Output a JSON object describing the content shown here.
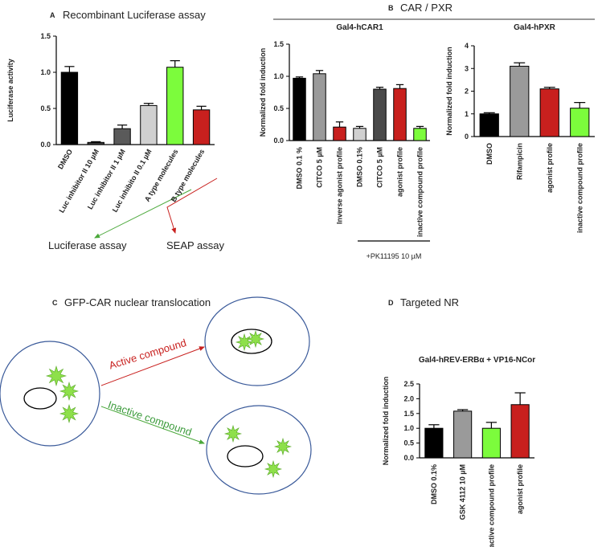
{
  "panels": [
    {
      "letter": "A",
      "title": "Recombinant Luciferase assay"
    },
    {
      "letter": "B",
      "title": "CAR / PXR"
    },
    {
      "letter": "C",
      "title": "GFP-CAR nuclear translocation"
    },
    {
      "letter": "D",
      "title": "Targeted NR"
    }
  ],
  "annotations": {
    "luciferase": "Luciferase assay",
    "seap": "SEAP assay",
    "pk": "+PK11195 10 µM",
    "active": "Active compound",
    "inactive": "Inactive compound"
  },
  "chart_data": [
    {
      "type": "bar",
      "ylabel": "Luciferase activity",
      "categories": [
        "DMSO",
        "Luc inhibitor II 10 µM",
        "Luc inhibitor II 1 µM",
        "Luc inhibito II 0.1 µM",
        "A type molecules",
        "B type molecules"
      ],
      "values": [
        1.0,
        0.03,
        0.22,
        0.54,
        1.07,
        0.48
      ],
      "errors": [
        0.08,
        0.01,
        0.05,
        0.03,
        0.09,
        0.05
      ],
      "colors": [
        "#000000",
        "#3a3a3a",
        "#5a5a5a",
        "#d0d0d0",
        "#7cfc3c",
        "#c8201e"
      ],
      "ylim": [
        0,
        1.5
      ],
      "yticks": [
        {
          "value": 0,
          "label": "0.0"
        },
        {
          "value": 0.5,
          "label": "0.5"
        },
        {
          "value": 1,
          "label": "1.0"
        },
        {
          "value": 1.5,
          "label": "1.5"
        }
      ]
    },
    {
      "type": "bar",
      "title": "Gal4-hCAR1",
      "ylabel": "Normalized fold induction",
      "categories": [
        "DMSO 0.1 %",
        "CITCO 5 µM",
        "Inverse agonist profile",
        "DMSO 0.1%",
        "CITCO 5 µM",
        "agonist profile",
        "inactive compound profile"
      ],
      "values": [
        0.97,
        1.04,
        0.21,
        0.19,
        0.8,
        0.81,
        0.19
      ],
      "errors": [
        0.02,
        0.05,
        0.08,
        0.03,
        0.03,
        0.06,
        0.03
      ],
      "colors": [
        "#000000",
        "#9a9a9a",
        "#c8201e",
        "#d0d0d0",
        "#4a4a4a",
        "#c8201e",
        "#7cfc3c"
      ],
      "ylim": [
        0,
        1.5
      ],
      "yticks": [
        {
          "value": 0,
          "label": "0.0"
        },
        {
          "value": 0.5,
          "label": "0.5"
        },
        {
          "value": 1,
          "label": "1.0"
        },
        {
          "value": 1.5,
          "label": "1.5"
        }
      ]
    },
    {
      "type": "bar",
      "title": "Gal4-hPXR",
      "ylabel": "Normalized fold induction",
      "categories": [
        "DMSO",
        "Rifampicin",
        "agonist profile",
        "inactive compound profile"
      ],
      "values": [
        1.0,
        3.1,
        2.1,
        1.25
      ],
      "errors": [
        0.05,
        0.15,
        0.07,
        0.25
      ],
      "colors": [
        "#000000",
        "#9a9a9a",
        "#c8201e",
        "#7cfc3c"
      ],
      "ylim": [
        0,
        4
      ],
      "yticks": [
        0,
        1,
        2,
        3,
        4
      ]
    },
    {
      "type": "bar",
      "title": "Gal4-hREV-ERBα + VP16-NCor",
      "ylabel": "Normalized fold induction",
      "categories": [
        "DMSO 0.1%",
        "GSK 4112 10 µM",
        "inactive compound profile",
        "agonist profile"
      ],
      "values": [
        1.0,
        1.58,
        1.0,
        1.8
      ],
      "errors": [
        0.12,
        0.05,
        0.2,
        0.4
      ],
      "colors": [
        "#000000",
        "#9a9a9a",
        "#7cfc3c",
        "#c8201e"
      ],
      "ylim": [
        0,
        2.5
      ],
      "yticks": [
        {
          "value": 0,
          "label": "0.0"
        },
        {
          "value": 0.5,
          "label": "0.5"
        },
        {
          "value": 1,
          "label": "1.0"
        },
        {
          "value": 1.5,
          "label": "1.5"
        },
        {
          "value": 2,
          "label": "2.0"
        },
        {
          "value": 2.5,
          "label": "2.5"
        }
      ]
    }
  ]
}
